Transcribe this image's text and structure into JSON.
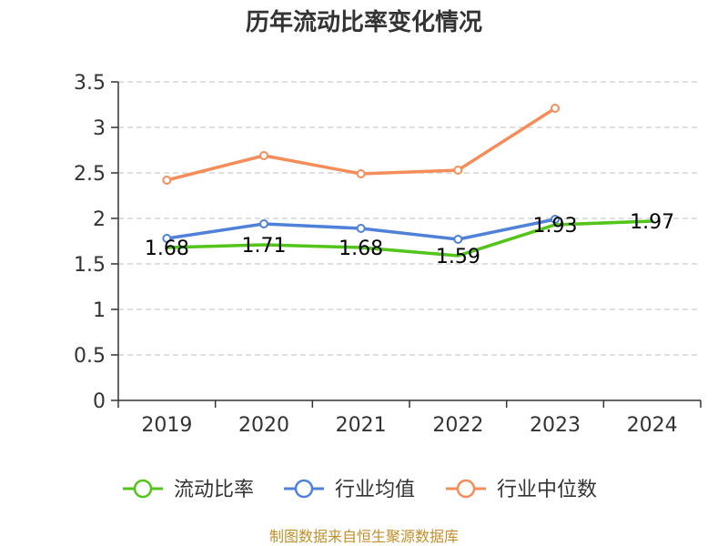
{
  "chart_data": {
    "type": "line",
    "title": "历年流动比率变化情况",
    "categories": [
      "2019",
      "2020",
      "2021",
      "2022",
      "2023",
      "2024"
    ],
    "ylim": [
      0,
      3.5
    ],
    "yticks": [
      "0",
      "0.5",
      "1",
      "1.5",
      "2",
      "2.5",
      "3",
      "3.5"
    ],
    "ytick_values": [
      0,
      0.5,
      1,
      1.5,
      2,
      2.5,
      3,
      3.5
    ],
    "grid": true,
    "legend_position": "bottom",
    "series": [
      {
        "name": "流动比率",
        "color": "#52c41a",
        "values": [
          1.68,
          1.71,
          1.68,
          1.59,
          1.93,
          1.97
        ],
        "labels": [
          "1.68",
          "1.71",
          "1.68",
          "1.59",
          "1.93",
          "1.97"
        ]
      },
      {
        "name": "行业均值",
        "color": "#4f81d9",
        "values": [
          1.78,
          1.94,
          1.89,
          1.77,
          1.99,
          null
        ]
      },
      {
        "name": "行业中位数",
        "color": "#f58d5a",
        "values": [
          2.42,
          2.69,
          2.49,
          2.53,
          3.21,
          null
        ]
      }
    ]
  },
  "source": "制图数据来自恒生聚源数据库"
}
